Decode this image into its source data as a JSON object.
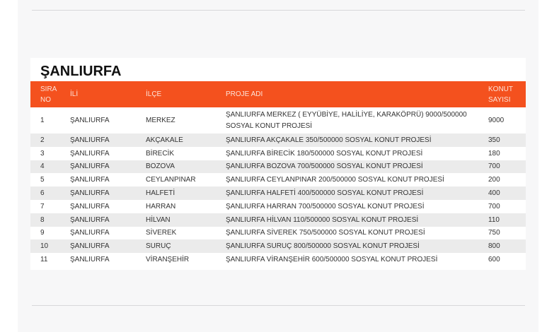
{
  "title": "ŞANLIURFA",
  "table": {
    "header": [
      "SIRA NO",
      "İLİ",
      "İLÇE",
      "PROJE ADI",
      "KONUT SAYISI"
    ],
    "rows": [
      [
        "1",
        "ŞANLIURFA",
        "MERKEZ",
        "ŞANLIURFA MERKEZ ( EYYÜBİYE, HALİLİYE, KARAKÖPRÜ) 9000/500000 SOSYAL KONUT PROJESİ",
        "9000"
      ],
      [
        "2",
        "ŞANLIURFA",
        "AKÇAKALE",
        "ŞANLIURFA AKÇAKALE 350/500000 SOSYAL KONUT PROJESİ",
        "350"
      ],
      [
        "3",
        "ŞANLIURFA",
        "BİRECİK",
        "ŞANLIURFA BİRECİK 180/500000 SOSYAL KONUT PROJESİ",
        "180"
      ],
      [
        "4",
        "ŞANLIURFA",
        "BOZOVA",
        "ŞANLIURFA BOZOVA 700/500000 SOSYAL KONUT PROJESİ",
        "700"
      ],
      [
        "5",
        "ŞANLIURFA",
        "CEYLANPINAR",
        "ŞANLIURFA CEYLANPINAR 200/500000 SOSYAL KONUT PROJESİ",
        "200"
      ],
      [
        "6",
        "ŞANLIURFA",
        "HALFETİ",
        "ŞANLIURFA HALFETİ 400/500000 SOSYAL KONUT PROJESİ",
        "400"
      ],
      [
        "7",
        "ŞANLIURFA",
        "HARRAN",
        "ŞANLIURFA HARRAN 700/500000 SOSYAL KONUT PROJESİ",
        "700"
      ],
      [
        "8",
        "ŞANLIURFA",
        "HİLVAN",
        "ŞANLIURFA HİLVAN 110/500000 SOSYAL KONUT PROJESİ",
        "110"
      ],
      [
        "9",
        "ŞANLIURFA",
        "SİVEREK",
        "ŞANLIURFA SİVEREK 750/500000 SOSYAL KONUT PROJESİ",
        "750"
      ],
      [
        "10",
        "ŞANLIURFA",
        "SURUÇ",
        "ŞANLIURFA SURUÇ 800/500000 SOSYAL KONUT PROJESİ",
        "800"
      ],
      [
        "11",
        "ŞANLIURFA",
        "VİRANŞEHİR",
        "ŞANLIURFA VİRANŞEHİR 600/500000 SOSYAL KONUT PROJESİ",
        "600"
      ]
    ]
  }
}
